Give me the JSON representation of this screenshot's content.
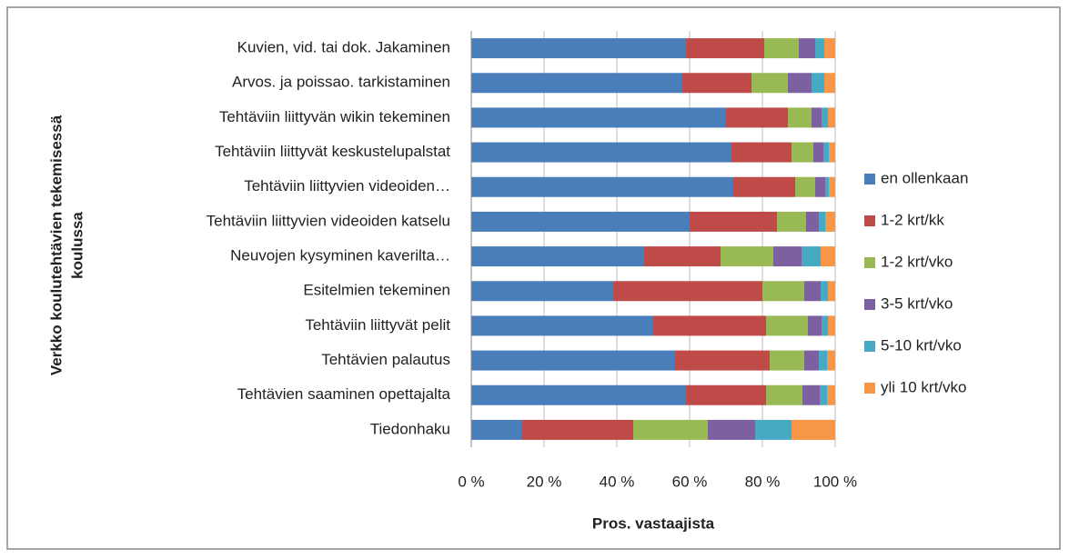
{
  "chart_data": {
    "type": "stacked_barh",
    "xlabel": "Pros. vastaajista",
    "ylabel": [
      "Verkko koulutehtävien tekemisessä",
      "koulussa"
    ],
    "categories": [
      "Kuvien, vid. tai dok. Jakaminen",
      "Arvos. ja poissao. tarkistaminen",
      "Tehtäviin liittyvän wikin tekeminen",
      "Tehtäviin liittyvät keskustelupalstat",
      "Tehtäviin liittyvien videoiden…",
      "Tehtäviin liittyvien videoiden katselu",
      "Neuvojen kysyminen kaverilta…",
      "Esitelmien tekeminen",
      "Tehtäviin liittyvät pelit",
      "Tehtävien palautus",
      "Tehtävien saaminen opettajalta",
      "Tiedonhaku"
    ],
    "series": [
      {
        "name": "en ollenkaan",
        "color": "#4a7ebb",
        "values": [
          59,
          58,
          70,
          71.5,
          72,
          60,
          47.5,
          39,
          50,
          56,
          59,
          14
        ]
      },
      {
        "name": "1-2 krt/kk",
        "color": "#be4b48",
        "values": [
          21.5,
          19,
          17,
          16.5,
          17,
          24,
          21,
          41,
          31,
          26,
          22,
          30.5
        ]
      },
      {
        "name": "1-2 krt/vko",
        "color": "#98b954",
        "values": [
          9.5,
          10,
          6.5,
          6,
          5.5,
          8,
          14.5,
          11.5,
          11.5,
          9.5,
          10,
          20.5
        ]
      },
      {
        "name": "3-5 krt/vko",
        "color": "#7d60a0",
        "values": [
          4.5,
          6.5,
          2.75,
          2.75,
          2.75,
          3.5,
          7.75,
          4.5,
          3.75,
          4,
          4.75,
          13
        ]
      },
      {
        "name": "5-10 krt/vko",
        "color": "#46aac5",
        "values": [
          2.5,
          3.5,
          1.75,
          1.5,
          1,
          1.75,
          5.25,
          2,
          1.75,
          2.25,
          2,
          10
        ]
      },
      {
        "name": "yli 10 krt/vko",
        "color": "#f79646",
        "values": [
          3,
          3,
          2,
          1.75,
          1.75,
          2.75,
          4,
          2,
          2,
          2.25,
          2.25,
          12
        ]
      }
    ],
    "xlim": [
      0,
      100
    ],
    "xticks": [
      {
        "value": 0,
        "label": "0 %"
      },
      {
        "value": 20,
        "label": "20 %"
      },
      {
        "value": 40,
        "label": "40 %"
      },
      {
        "value": 60,
        "label": "60 %"
      },
      {
        "value": 80,
        "label": "80 %"
      },
      {
        "value": 100,
        "label": "100 %"
      }
    ],
    "grid": true,
    "legend": "right"
  }
}
